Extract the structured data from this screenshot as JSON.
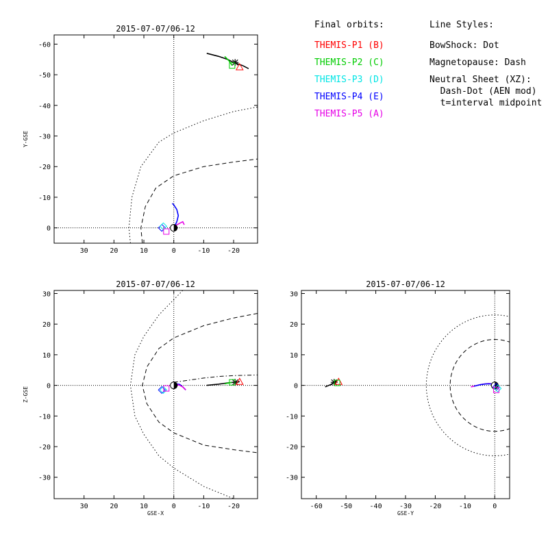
{
  "legend": {
    "orbits_title": "Final orbits:",
    "orbits": [
      {
        "label": "THEMIS-P1 (B)",
        "color": "#ff0000"
      },
      {
        "label": "THEMIS-P2 (C)",
        "color": "#00cc00"
      },
      {
        "label": "THEMIS-P3 (D)",
        "color": "#00e5e5"
      },
      {
        "label": "THEMIS-P4 (E)",
        "color": "#0000ff"
      },
      {
        "label": "THEMIS-P5 (A)",
        "color": "#e600e6"
      }
    ],
    "styles_title": "Line Styles:",
    "styles": [
      "BowShock: Dot",
      "Magnetopause: Dash",
      "Neutral Sheet (XZ):",
      "  Dash-Dot (AEN mod)",
      "  t=interval midpoint"
    ]
  },
  "chart_data": [
    {
      "id": "xy",
      "type": "line",
      "title": "2015-07-07/06-12",
      "xlabel": "",
      "ylabel": "Y-GSE",
      "xlim": [
        40,
        -28
      ],
      "ylim": [
        5,
        -63
      ],
      "xticks": [
        30,
        20,
        10,
        0,
        -10,
        -20
      ],
      "yticks": [
        0,
        -10,
        -20,
        -30,
        -40,
        -50,
        -60
      ],
      "series": [
        {
          "name": "bowshock",
          "style": "dot",
          "points": [
            [
              14.5,
              5
            ],
            [
              15,
              0
            ],
            [
              14,
              -10
            ],
            [
              11,
              -20
            ],
            [
              5,
              -28
            ],
            [
              0,
              -31
            ],
            [
              -10,
              -35
            ],
            [
              -20,
              -38
            ],
            [
              -28,
              -39.5
            ]
          ]
        },
        {
          "name": "magnetopause",
          "style": "dash",
          "points": [
            [
              10.5,
              5
            ],
            [
              11,
              0
            ],
            [
              9.5,
              -7
            ],
            [
              6,
              -13
            ],
            [
              0,
              -17
            ],
            [
              -10,
              -20
            ],
            [
              -20,
              -21.5
            ],
            [
              -28,
              -22.5
            ]
          ]
        },
        {
          "name": "P4 orbit",
          "color": "#0000ff",
          "points": [
            [
              0,
              0
            ],
            [
              -1,
              -2
            ],
            [
              -1.5,
              -4
            ],
            [
              -1,
              -6
            ],
            [
              0,
              -7.5
            ],
            [
              0.5,
              -8
            ]
          ]
        },
        {
          "name": "P5 orbit",
          "color": "#e600e6",
          "points": [
            [
              0,
              0
            ],
            [
              -1,
              -1
            ],
            [
              -2,
              -1.5
            ],
            [
              -3,
              -2
            ],
            [
              -3.5,
              -1
            ]
          ]
        },
        {
          "name": "P1 orbit",
          "color": "#000000",
          "points": [
            [
              -11,
              -57
            ],
            [
              -15,
              -56
            ],
            [
              -18,
              -55
            ],
            [
              -20,
              -54
            ],
            [
              -23,
              -53
            ],
            [
              -25,
              -52
            ]
          ]
        },
        {
          "name": "P2 orbit",
          "color": "#00cc00",
          "points": [
            [
              -17,
              -56
            ],
            [
              -18.5,
              -54.5
            ],
            [
              -19.5,
              -53
            ]
          ]
        }
      ],
      "markers": [
        {
          "x": -20.5,
          "y": -54,
          "shape": "star",
          "color": "#000000"
        },
        {
          "x": -22,
          "y": -52.5,
          "shape": "triangle",
          "color": "#ff0000"
        },
        {
          "x": -19.5,
          "y": -53,
          "shape": "square",
          "color": "#00cc00"
        },
        {
          "x": 4,
          "y": 0,
          "shape": "diamond",
          "color": "#0000ff"
        },
        {
          "x": 3.5,
          "y": -0.5,
          "shape": "diamond",
          "color": "#00e5e5"
        },
        {
          "x": 2.5,
          "y": 1.2,
          "shape": "square",
          "color": "#e600e6"
        }
      ]
    },
    {
      "id": "xz",
      "type": "line",
      "title": "2015-07-07/06-12",
      "xlabel": "GSE-X",
      "ylabel": "Z-GSE",
      "xlim": [
        40,
        -28
      ],
      "ylim": [
        -37,
        31
      ],
      "xticks": [
        30,
        20,
        10,
        0,
        -10,
        -20
      ],
      "yticks": [
        -30,
        -20,
        -10,
        0,
        10,
        20,
        30
      ],
      "series": [
        {
          "name": "bowshock",
          "style": "dot",
          "points": [
            [
              -3,
              31
            ],
            [
              0,
              28
            ],
            [
              5,
              23
            ],
            [
              10,
              16
            ],
            [
              13,
              10
            ],
            [
              14.5,
              0
            ],
            [
              13,
              -10
            ],
            [
              10,
              -16
            ],
            [
              5,
              -23
            ],
            [
              0,
              -27
            ],
            [
              -10,
              -33
            ],
            [
              -20,
              -37
            ]
          ]
        },
        {
          "name": "magnetopause",
          "style": "dash",
          "points": [
            [
              -28,
              23.5
            ],
            [
              -20,
              22
            ],
            [
              -10,
              19.5
            ],
            [
              0,
              15.5
            ],
            [
              5,
              12
            ],
            [
              9,
              6
            ],
            [
              10.5,
              0
            ],
            [
              9,
              -6
            ],
            [
              5,
              -12
            ],
            [
              0,
              -15.5
            ],
            [
              -10,
              -19.5
            ],
            [
              -20,
              -21
            ],
            [
              -28,
              -22
            ]
          ]
        },
        {
          "name": "neutral sheet",
          "style": "dashdot",
          "points": [
            [
              0,
              1
            ],
            [
              -5,
              1.7
            ],
            [
              -10,
              2.4
            ],
            [
              -15,
              2.9
            ],
            [
              -20,
              3.2
            ],
            [
              -28,
              3.4
            ]
          ]
        },
        {
          "name": "P4 orbit",
          "color": "#0000ff",
          "points": [
            [
              0,
              0
            ],
            [
              -1,
              0.5
            ],
            [
              -2,
              0.3
            ],
            [
              -3,
              -0.5
            ],
            [
              -4,
              -1.5
            ]
          ]
        },
        {
          "name": "P5 orbit",
          "color": "#e600e6",
          "points": [
            [
              0,
              0
            ],
            [
              -1.5,
              0.2
            ],
            [
              -3,
              -0.5
            ],
            [
              -4,
              -1.5
            ]
          ]
        },
        {
          "name": "P1 orbit",
          "color": "#000000",
          "points": [
            [
              -11,
              0
            ],
            [
              -15,
              0.4
            ],
            [
              -18,
              0.8
            ],
            [
              -20,
              1
            ],
            [
              -22,
              1.2
            ]
          ]
        },
        {
          "name": "P2 orbit",
          "color": "#00cc00",
          "points": [
            [
              -17,
              0.5
            ],
            [
              -18.5,
              0.8
            ],
            [
              -19.5,
              1
            ]
          ]
        }
      ],
      "markers": [
        {
          "x": -20.5,
          "y": 1,
          "shape": "star",
          "color": "#000000"
        },
        {
          "x": -22,
          "y": 1.2,
          "shape": "triangle",
          "color": "#ff0000"
        },
        {
          "x": -19.5,
          "y": 1,
          "shape": "square",
          "color": "#00cc00"
        },
        {
          "x": 4,
          "y": -1.5,
          "shape": "diamond",
          "color": "#0000ff"
        },
        {
          "x": 3.5,
          "y": -1.5,
          "shape": "diamond",
          "color": "#00e5e5"
        },
        {
          "x": 2.5,
          "y": -1,
          "shape": "square",
          "color": "#e600e6"
        }
      ]
    },
    {
      "id": "yz",
      "type": "line",
      "title": "2015-07-07/06-12",
      "xlabel": "GSE-Y",
      "ylabel": "",
      "xlim": [
        -65,
        5
      ],
      "ylim": [
        -37,
        31
      ],
      "xticks": [
        -60,
        -50,
        -40,
        -30,
        -20,
        -10,
        0
      ],
      "yticks": [
        -30,
        -20,
        -10,
        0,
        10,
        20,
        30
      ],
      "series": [
        {
          "name": "bowshock",
          "style": "dot",
          "circle": true,
          "cx": 0,
          "cy": 0,
          "r": 23
        },
        {
          "name": "magnetopause",
          "style": "dash",
          "circle": true,
          "cx": 0,
          "cy": 0,
          "r": 15
        },
        {
          "name": "P5 orbit",
          "color": "#e600e6",
          "points": [
            [
              -8,
              -0.5
            ],
            [
              -6,
              0
            ],
            [
              -4,
              0.4
            ],
            [
              -2,
              0.6
            ],
            [
              -1,
              0.5
            ],
            [
              0,
              0
            ],
            [
              0.5,
              -0.5
            ]
          ]
        },
        {
          "name": "P4 orbit",
          "color": "#0000ff",
          "points": [
            [
              -7,
              -0.3
            ],
            [
              -5,
              0.2
            ],
            [
              -3,
              0.5
            ],
            [
              -1,
              0.5
            ],
            [
              0.5,
              0
            ]
          ]
        },
        {
          "name": "P1 orbit",
          "color": "#000000",
          "points": [
            [
              -57,
              -0.5
            ],
            [
              -55,
              0.3
            ],
            [
              -54,
              1
            ],
            [
              -53,
              1.4
            ]
          ]
        },
        {
          "name": "P2 orbit",
          "color": "#00cc00",
          "points": [
            [
              -54,
              0.5
            ],
            [
              -53.5,
              1
            ],
            [
              -53,
              1.2
            ]
          ]
        }
      ],
      "markers": [
        {
          "x": -54,
          "y": 1,
          "shape": "star",
          "color": "#000000"
        },
        {
          "x": -52.5,
          "y": 1.2,
          "shape": "triangle",
          "color": "#ff0000"
        },
        {
          "x": -53,
          "y": 0.8,
          "shape": "square",
          "color": "#00cc00"
        },
        {
          "x": 0.5,
          "y": -0.5,
          "shape": "diamond",
          "color": "#0000ff"
        },
        {
          "x": 1,
          "y": -1,
          "shape": "diamond",
          "color": "#00e5e5"
        },
        {
          "x": 0.5,
          "y": -1.5,
          "shape": "square",
          "color": "#e600e6"
        }
      ]
    }
  ]
}
